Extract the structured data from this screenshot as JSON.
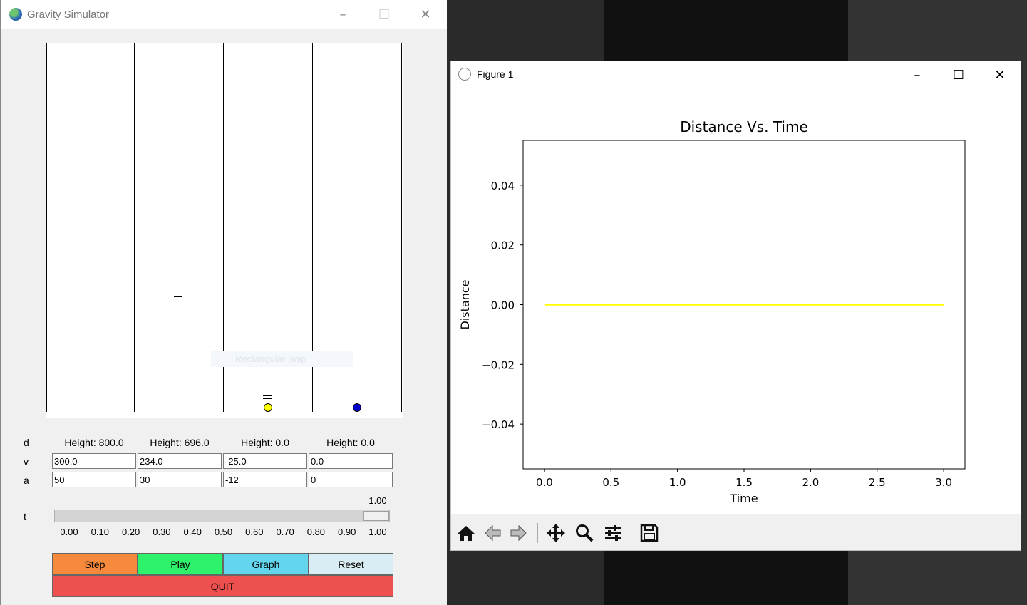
{
  "sim": {
    "title": "Gravity Simulator",
    "tooltip": "Rectangular Snip",
    "row_labels": {
      "d": "d",
      "v": "v",
      "a": "a",
      "t": "t"
    },
    "heights": [
      "Height: 800.0",
      "Height: 696.0",
      "Height: 0.0",
      "Height: 0.0"
    ],
    "velocities": [
      "300.0",
      "234.0",
      "-25.0",
      "0.0"
    ],
    "accelerations": [
      "50",
      "30",
      "-12",
      "0"
    ],
    "time_slider": {
      "value": 1.0,
      "value_label": "1.00",
      "ticks": [
        "0.00",
        "0.10",
        "0.20",
        "0.30",
        "0.40",
        "0.50",
        "0.60",
        "0.70",
        "0.80",
        "0.90",
        "1.00"
      ]
    },
    "buttons": {
      "step": "Step",
      "play": "Play",
      "graph": "Graph",
      "reset": "Reset",
      "quit": "QUIT"
    },
    "colors": {
      "step": "#f58a3c",
      "play": "#2ef26a",
      "graph": "#63d6ee",
      "reset": "#d9eef4",
      "quit": "#ee4f4f",
      "ball_yellow": "#ffff00",
      "ball_blue": "#0000cc"
    }
  },
  "figure": {
    "title": "Figure 1",
    "toolbar_icons": [
      "home-icon",
      "back-arrow-icon",
      "forward-arrow-icon",
      "pan-icon",
      "zoom-icon",
      "configure-subplots-icon",
      "save-icon"
    ]
  },
  "chart_data": {
    "type": "line",
    "title": "Distance Vs. Time",
    "xlabel": "Time",
    "ylabel": "Distance",
    "xlim": [
      -0.16,
      3.16
    ],
    "ylim": [
      -0.055,
      0.055
    ],
    "xticks": [
      0.0,
      0.5,
      1.0,
      1.5,
      2.0,
      2.5,
      3.0
    ],
    "xtick_labels": [
      "0.0",
      "0.5",
      "1.0",
      "1.5",
      "2.0",
      "2.5",
      "3.0"
    ],
    "yticks": [
      0.04,
      0.02,
      0.0,
      -0.02,
      -0.04
    ],
    "ytick_labels": [
      "0.04",
      "0.02",
      "0.00",
      "−0.02",
      "−0.04"
    ],
    "series": [
      {
        "name": "distance",
        "color": "#ffff00",
        "x": [
          0.0,
          3.0
        ],
        "y": [
          0.0,
          0.0
        ]
      }
    ]
  }
}
